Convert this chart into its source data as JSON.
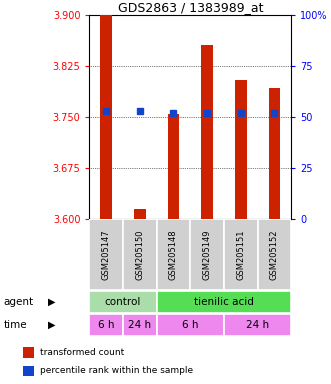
{
  "title": "GDS2863 / 1383989_at",
  "samples": [
    "GSM205147",
    "GSM205150",
    "GSM205148",
    "GSM205149",
    "GSM205151",
    "GSM205152"
  ],
  "transformed_counts": [
    3.9,
    3.615,
    3.755,
    3.856,
    3.804,
    3.793
  ],
  "percentile_ranks": [
    53,
    53,
    52,
    52,
    52,
    52
  ],
  "ylim_left": [
    3.6,
    3.9
  ],
  "ylim_right": [
    0,
    100
  ],
  "yticks_left": [
    3.6,
    3.675,
    3.75,
    3.825,
    3.9
  ],
  "yticks_right": [
    0,
    25,
    50,
    75,
    100
  ],
  "bar_color": "#cc2200",
  "dot_color": "#1144cc",
  "agent_color_control": "#aaddaa",
  "agent_color_tienilic": "#55dd55",
  "time_color_light": "#ee88ee",
  "time_color_dark": "#dd55dd",
  "legend_bar_color": "#cc2200",
  "legend_dot_color": "#1144cc",
  "bar_width": 0.35
}
